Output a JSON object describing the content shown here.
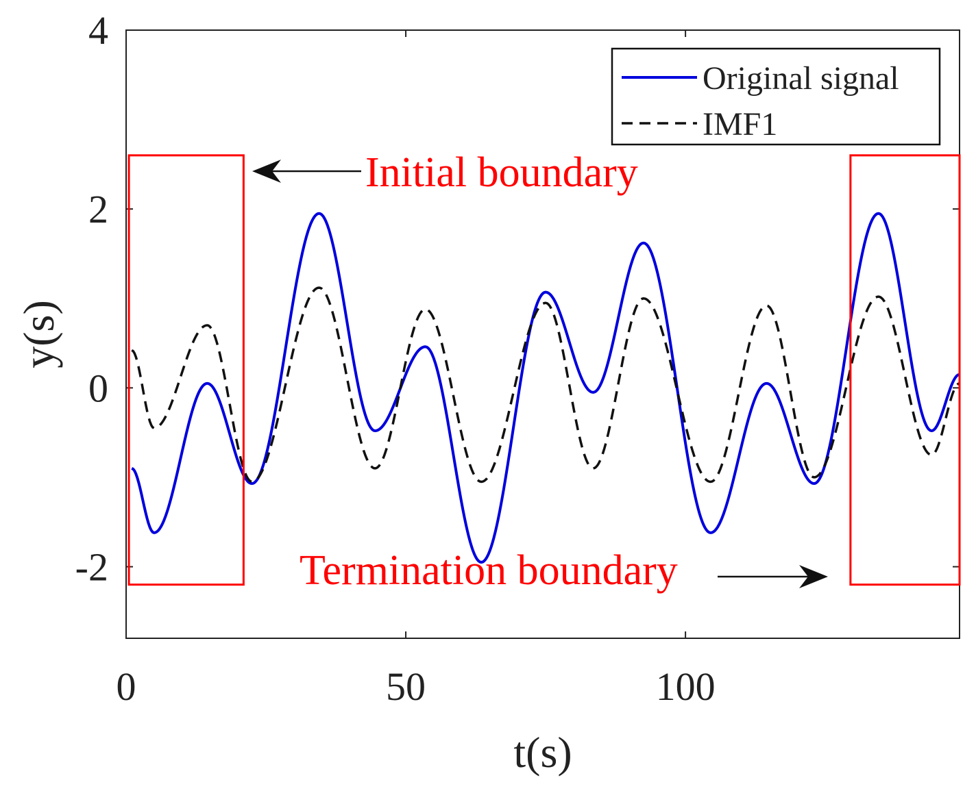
{
  "chart_data": {
    "type": "line",
    "title": "",
    "xlabel": "t(s)",
    "ylabel": "y(s)",
    "xlim": [
      0,
      149
    ],
    "ylim": [
      -2.8,
      4
    ],
    "grid": false,
    "x_ticks": [
      0,
      50,
      100
    ],
    "x_tick_labels": [
      "0",
      "50",
      "100"
    ],
    "y_ticks": [
      4,
      2,
      0,
      -2
    ],
    "y_tick_labels": [
      "4",
      "2",
      "0",
      "-2"
    ],
    "legend_position": "top-right",
    "x": [
      1,
      5,
      14.5,
      22.5,
      34.5,
      44.5,
      53.5,
      63.5,
      75,
      83.5,
      92.5,
      104.5,
      114.5,
      123,
      134.5,
      144,
      149
    ],
    "series": [
      {
        "name": "Original signal",
        "color": "#0000dd",
        "style": "solid",
        "values": [
          -0.9,
          -1.62,
          0.05,
          -1.07,
          1.95,
          -0.48,
          0.46,
          -1.95,
          1.07,
          -0.05,
          1.62,
          -1.62,
          0.05,
          -1.07,
          1.95,
          -0.48,
          0.15
        ]
      },
      {
        "name": "IMF1",
        "color": "#111111",
        "style": "dashed",
        "values": [
          0.42,
          -0.45,
          0.7,
          -1.05,
          1.12,
          -0.9,
          0.88,
          -1.05,
          0.95,
          -0.9,
          1.0,
          -1.05,
          0.92,
          -1.0,
          1.02,
          -0.75,
          0.05
        ]
      }
    ],
    "annotations": [
      {
        "text": "Initial boundary",
        "color": "#ff0000",
        "x_range": [
          0.5,
          21
        ],
        "y_range": [
          -2.2,
          2.6
        ]
      },
      {
        "text": "Termination boundary",
        "color": "#ff0000",
        "x_range": [
          129.5,
          149
        ],
        "y_range": [
          -2.2,
          2.6
        ]
      }
    ]
  }
}
